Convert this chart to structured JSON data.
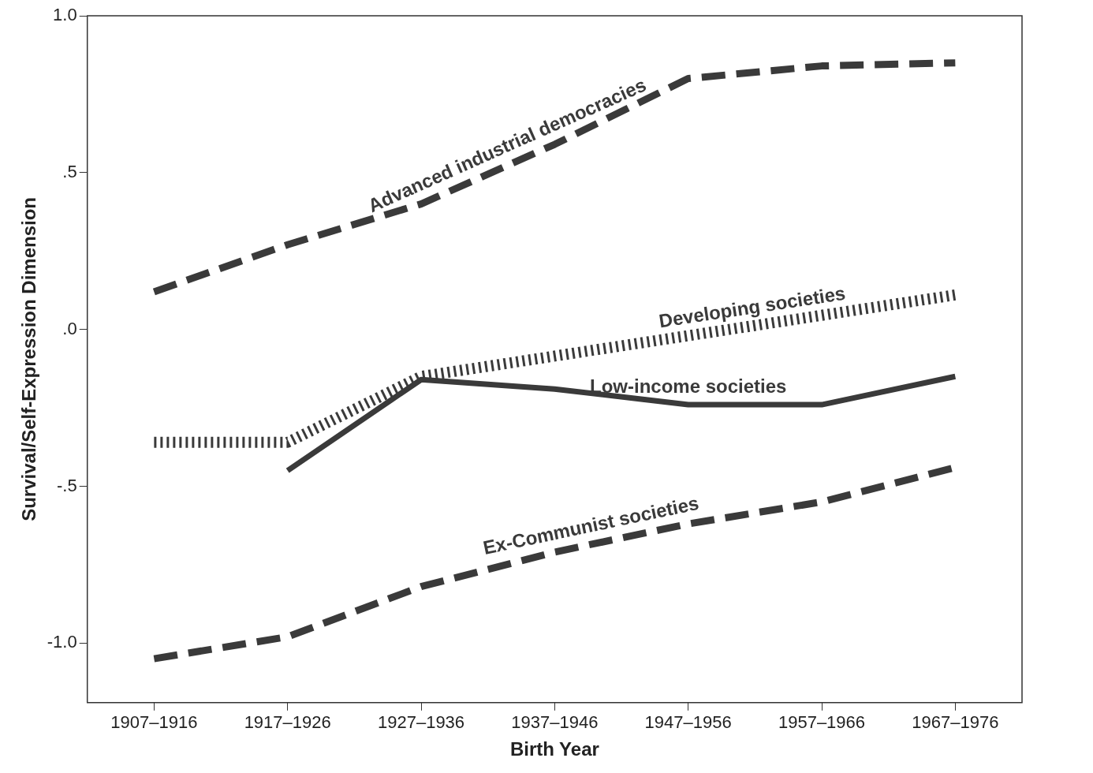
{
  "chart_data": {
    "type": "line",
    "xlabel": "Birth Year",
    "ylabel": "Survival/Self-Expression Dimension",
    "categories": [
      "1907–1916",
      "1917–1926",
      "1927–1936",
      "1937–1946",
      "1947–1956",
      "1957–1966",
      "1967–1976"
    ],
    "series": [
      {
        "name": "Advanced industrial democracies",
        "color": "#3a3a3a",
        "line_style": "dashed",
        "values": [
          0.12,
          0.27,
          0.4,
          0.59,
          0.8,
          0.84,
          0.85
        ]
      },
      {
        "name": "Developing societies",
        "color": "#3a3a3a",
        "line_style": "dotted",
        "values": [
          -0.36,
          -0.36,
          -0.15,
          -0.085,
          -0.02,
          0.045,
          0.11
        ]
      },
      {
        "name": "Low-income societies",
        "color": "#3a3a3a",
        "line_style": "solid",
        "values": [
          null,
          -0.45,
          -0.16,
          -0.19,
          -0.24,
          -0.24,
          -0.15
        ]
      },
      {
        "name": "Ex-Communist societies",
        "color": "#3a3a3a",
        "line_style": "dashed",
        "values": [
          -1.05,
          -0.98,
          -0.82,
          -0.71,
          -0.62,
          -0.55,
          -0.44
        ]
      }
    ],
    "ylim": [
      -1.19,
      1.0
    ],
    "yticks": [
      {
        "value": 1.0,
        "label": "1.0"
      },
      {
        "value": 0.5,
        "label": ".5"
      },
      {
        "value": 0,
        "label": ".0"
      },
      {
        "value": -0.5,
        "label": "-.5"
      },
      {
        "value": -1.0,
        "label": "-1.0"
      }
    ],
    "grid": false,
    "legend": false,
    "marker": "none"
  }
}
